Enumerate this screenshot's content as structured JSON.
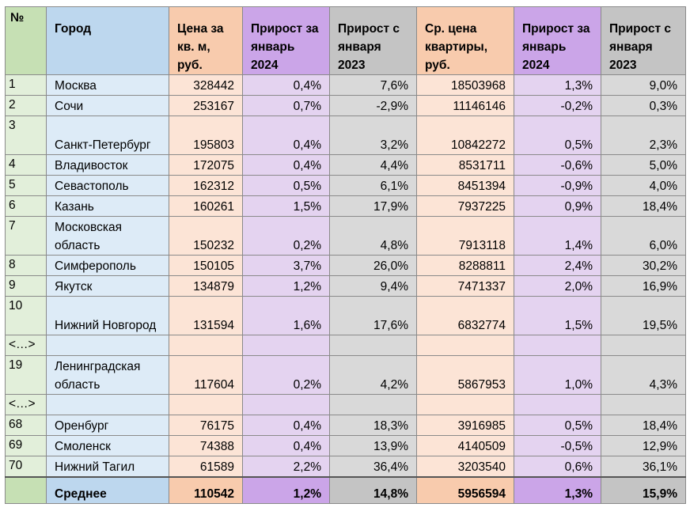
{
  "headers": [
    "№",
    "Город",
    "Цена за кв. м, руб.",
    "Прирост за январь 2024",
    "Прирост с января 2023",
    "Ср. цена квартиры, руб.",
    "Прирост за январь 2024",
    "Прирост с января 2023"
  ],
  "rows": [
    [
      "1",
      "Москва",
      "328442",
      "0,4%",
      "7,6%",
      "18503968",
      "1,3%",
      "9,0%"
    ],
    [
      "2",
      "Сочи",
      "253167",
      "0,7%",
      "-2,9%",
      "11146146",
      "-0,2%",
      "0,3%"
    ],
    [
      "3",
      "Санкт-Петербург",
      "195803",
      "0,4%",
      "3,2%",
      "10842272",
      "0,5%",
      "2,3%"
    ],
    [
      "4",
      "Владивосток",
      "172075",
      "0,4%",
      "4,4%",
      "8531711",
      "-0,6%",
      "5,0%"
    ],
    [
      "5",
      "Севастополь",
      "162312",
      "0,5%",
      "6,1%",
      "8451394",
      "-0,9%",
      "4,0%"
    ],
    [
      "6",
      "Казань",
      "160261",
      "1,5%",
      "17,9%",
      "7937225",
      "0,9%",
      "18,4%"
    ],
    [
      "7",
      "Московская область",
      "150232",
      "0,2%",
      "4,8%",
      "7913118",
      "1,4%",
      "6,0%"
    ],
    [
      "8",
      "Симферополь",
      "150105",
      "3,7%",
      "26,0%",
      "8288811",
      "2,4%",
      "30,2%"
    ],
    [
      "9",
      "Якутск",
      "134879",
      "1,2%",
      "9,4%",
      "7471337",
      "2,0%",
      "16,9%"
    ],
    [
      "10",
      "Нижний Новгород",
      "131594",
      "1,6%",
      "17,6%",
      "6832774",
      "1,5%",
      "19,5%"
    ],
    [
      "<…>",
      "",
      "",
      "",
      "",
      "",
      "",
      ""
    ],
    [
      "19",
      "Ленинградская область",
      "117604",
      "0,2%",
      "4,2%",
      "5867953",
      "1,0%",
      "4,3%"
    ],
    [
      "<…>",
      "",
      "",
      "",
      "",
      "",
      "",
      ""
    ],
    [
      "68",
      "Оренбург",
      "76175",
      "0,4%",
      "18,3%",
      "3916985",
      "0,5%",
      "18,4%"
    ],
    [
      "69",
      "Смоленск",
      "74388",
      "0,4%",
      "13,9%",
      "4140509",
      "-0,5%",
      "12,9%"
    ],
    [
      "70",
      "Нижний Тагил",
      "61589",
      "2,2%",
      "36,4%",
      "3203540",
      "0,6%",
      "36,1%"
    ]
  ],
  "footer": [
    "",
    "Среднее",
    "110542",
    "1,2%",
    "14,8%",
    "5956594",
    "1,3%",
    "15,9%"
  ]
}
